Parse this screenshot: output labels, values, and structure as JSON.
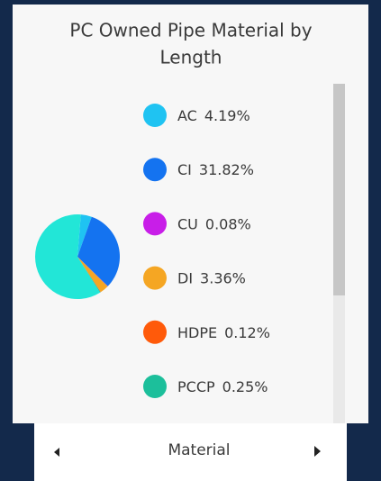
{
  "chart_data": {
    "type": "pie",
    "title": [
      "PC Owned Pipe Material by",
      "Length"
    ],
    "categories": [
      "AC",
      "CI",
      "CU",
      "DI",
      "HDPE",
      "PCCP",
      null
    ],
    "values": [
      4.19,
      31.82,
      0.08,
      3.36,
      0.12,
      0.25,
      60.18
    ],
    "value_labels": [
      "4.19%",
      "31.82%",
      "0.08%",
      "3.36%",
      "0.12%",
      "0.25%",
      null
    ],
    "colors": [
      "#1fc3f2",
      "#1473f0",
      "#c81ee8",
      "#f5a623",
      "#ff5a0a",
      "#1cbf9b",
      "#22e6d7"
    ],
    "footer": "Material"
  }
}
